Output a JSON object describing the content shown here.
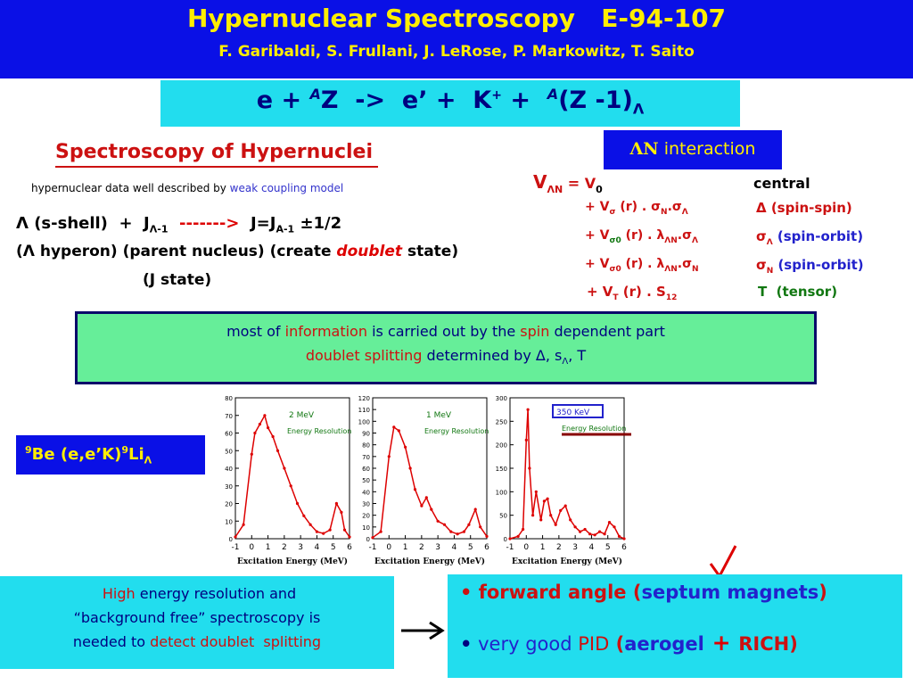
{
  "header": {
    "title": "Hypernuclear Spectroscopy   E-94-107",
    "authors": "F. Garibaldi, S. Frullani, J. LeRose, P. Markowitz, T. Saito"
  },
  "reaction": {
    "e_plus": "e + ",
    "a1": "A",
    "z": "Z  ->  e’ +  K",
    "kplus": "+",
    "plus2": " +  ",
    "a2": "A",
    "tail": "(Z -1)",
    "lambda": "Λ"
  },
  "ln_interaction": {
    "symbol": "ΛN",
    "label": " interaction"
  },
  "spectroscopy": {
    "title": "Spectroscopy of Hypernuclei",
    "weak_prefix": "hypernuclear data well described by ",
    "weak_model": "weak coupling model",
    "line1_a": "Λ (s-shell)  +  J",
    "line1_sub": "Λ-1",
    "line1_arrow": "  ------->  ",
    "line1_b": "J=J",
    "line1_sub2": "A-1",
    "line1_c": " ±1/2",
    "line2_a": "(Λ hyperon) (parent nucleus) (create ",
    "line2_doublet": "doublet",
    "line2_b": " state)",
    "line3": "(J state)"
  },
  "potential": {
    "v_lhs": "V",
    "v_lhs_sub": "ΛN",
    "eq": " = V",
    "v0_sub": "0",
    "central": "central",
    "rows": [
      {
        "term": "+ V",
        "sub": "σ",
        "rest": " (r) . σ",
        "s1": "N",
        "dot": ".σ",
        "s2": "Λ",
        "desc_sym": "Δ",
        "desc": " (spin-spin)"
      },
      {
        "term": "+ V",
        "sub": "σ0",
        "rest": " (r) . λ",
        "s1": "ΛN",
        "dot": ".σ",
        "s2": "Λ",
        "desc_sym": "σ",
        "desc_sub": "Λ",
        "desc": " (spin-orbit)"
      },
      {
        "term": "+ V",
        "sub": "σ0",
        "rest": " (r) . λ",
        "s1": "ΛN",
        "dot": ".σ",
        "s2": "N",
        "desc_sym": "σ",
        "desc_sub": "N",
        "desc": " (spin-orbit)"
      },
      {
        "term": "+ V",
        "sub": "T",
        "rest": " (r) . S",
        "s1": "12",
        "dot": "",
        "s2": "",
        "desc_sym": "T",
        "desc": "  (tensor)"
      }
    ]
  },
  "info_box": {
    "l1_a": "most of ",
    "l1_info": "information",
    "l1_b": " is carried out by the ",
    "l1_spin": "spin",
    "l1_c": " dependent part",
    "l2_a": "doublet splitting",
    "l2_b": " determined by Δ, s",
    "l2_sub": "Λ",
    "l2_c": ", T"
  },
  "be_label": {
    "sup1": "9",
    "text": "Be (e,e’K)",
    "sup2": "9",
    "li": "Li",
    "sub": "Λ"
  },
  "chart_data": [
    {
      "type": "line",
      "annotation": "2 MeV",
      "annotation2": "Energy Resolution",
      "xlabel": "Excitation Energy (MeV)",
      "xlim": [
        -1,
        6
      ],
      "ylim": [
        0,
        80
      ],
      "xticks": [
        "-1",
        "0",
        "1",
        "2",
        "3",
        "4",
        "5",
        "6"
      ],
      "yticks": [
        "0",
        "10",
        "20",
        "30",
        "40",
        "50",
        "60",
        "70",
        "80"
      ],
      "x": [
        -1,
        -0.5,
        0,
        0.2,
        0.5,
        0.8,
        1.0,
        1.3,
        1.6,
        2.0,
        2.4,
        2.8,
        3.2,
        3.6,
        4.0,
        4.4,
        4.8,
        5.2,
        5.5,
        5.7,
        6.0
      ],
      "values": [
        1,
        8,
        48,
        60,
        65,
        70,
        63,
        58,
        50,
        40,
        30,
        20,
        13,
        8,
        4,
        3,
        5,
        20,
        15,
        5,
        1
      ]
    },
    {
      "type": "line",
      "annotation": "1 MeV",
      "annotation2": "Energy Resolution",
      "xlabel": "Excitation Energy (MeV)",
      "xlim": [
        -1,
        6
      ],
      "ylim": [
        0,
        120
      ],
      "xticks": [
        "-1",
        "0",
        "1",
        "2",
        "3",
        "4",
        "5",
        "6"
      ],
      "yticks": [
        "0",
        "10",
        "20",
        "30",
        "40",
        "50",
        "60",
        "70",
        "80",
        "90",
        "100",
        "110",
        "120"
      ],
      "x": [
        -1,
        -0.5,
        0,
        0.3,
        0.6,
        1.0,
        1.3,
        1.6,
        2.0,
        2.3,
        2.6,
        3.0,
        3.4,
        3.8,
        4.2,
        4.6,
        4.9,
        5.3,
        5.6,
        6.0
      ],
      "values": [
        1,
        6,
        70,
        95,
        92,
        78,
        60,
        42,
        28,
        35,
        25,
        15,
        12,
        6,
        4,
        6,
        12,
        25,
        10,
        2
      ]
    },
    {
      "type": "line",
      "annotation": "350 KeV",
      "annotation2": "Energy Resolution",
      "xlabel": "Excitation Energy (MeV)",
      "xlim": [
        -1,
        6
      ],
      "ylim": [
        0,
        300
      ],
      "xticks": [
        "-1",
        "0",
        "1",
        "2",
        "3",
        "4",
        "5",
        "6"
      ],
      "yticks": [
        "0",
        "50",
        "100",
        "150",
        "200",
        "250",
        "300"
      ],
      "x": [
        -1,
        -0.5,
        -0.2,
        0,
        0.1,
        0.2,
        0.4,
        0.6,
        0.9,
        1.1,
        1.3,
        1.5,
        1.8,
        2.1,
        2.4,
        2.7,
        3.0,
        3.3,
        3.6,
        3.9,
        4.2,
        4.5,
        4.8,
        5.1,
        5.4,
        5.7,
        6.0
      ],
      "values": [
        0,
        5,
        20,
        210,
        275,
        150,
        50,
        100,
        40,
        80,
        85,
        50,
        30,
        60,
        70,
        40,
        25,
        15,
        20,
        10,
        8,
        15,
        10,
        35,
        25,
        5,
        0
      ]
    }
  ],
  "left_box": {
    "l1_a": " High",
    "l1_b": " energy resolution",
    "l1_c": " and",
    "l2_a": "“background free”",
    "l2_b": " spectroscopy is",
    "l3_a": "needed to",
    "l3_b": " detect doublet  splitting"
  },
  "right_box": {
    "bullet": "•",
    "l1_a": " forward angle",
    "l1_b": " (",
    "l1_c": "septum magnets",
    "l1_d": ")",
    "l2_a": " very good",
    "l2_b": " PID",
    "l2_c": " (",
    "l2_d": "aerogel",
    "l2_plus": " + ",
    "l2_e": "RICH",
    "l2_f": ")"
  },
  "colors": {
    "header_bg": "#0a10e6",
    "title_yellow": "#ffee00",
    "cyan_box": "#22ddee",
    "green_box": "#66ee99",
    "red_text": "#cc1111",
    "navy_text": "#000080",
    "plot_line": "#dd0000"
  }
}
